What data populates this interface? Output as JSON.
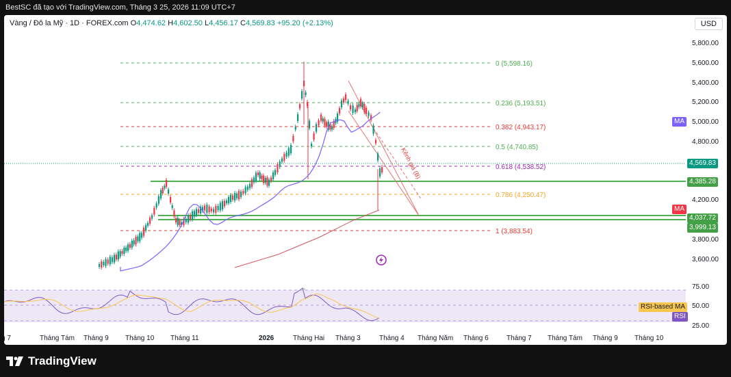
{
  "header": {
    "text": "BestSC đã tạo với TradingView.com, Tháng 3 25, 2026 11:09 UTC+7"
  },
  "legend": {
    "symbol": "Vàng / Đô la Mỹ · 1D · FOREX.com",
    "open_label": "O",
    "open": "4,474.62",
    "high_label": "H",
    "high": "4,602.50",
    "low_label": "L",
    "low": "4,456.17",
    "close_label": "C",
    "close": "4,569.83",
    "change": "+95.20 (+2.13%)"
  },
  "currency": "USD",
  "price_axis": [
    "5,800.00",
    "5,600.00",
    "5,400.00",
    "5,200.00",
    "5,000.00",
    "4,800.00",
    "4,200.00",
    "3,800.00",
    "3,600.00"
  ],
  "rsi_axis": [
    "75.00",
    "50.00",
    "25.00"
  ],
  "price_tags": {
    "last": "4,569.83",
    "level1": "4,385.28",
    "level2": "4,037.72",
    "level3": "3,999.13",
    "ma1": "MA",
    "ma2": "MA",
    "rsi_ma": "RSI-based MA",
    "rsi": "RSI"
  },
  "fib_labels": [
    {
      "text": "0 (5,598.16)",
      "color": "#4caf50"
    },
    {
      "text": "0.236 (5,193.51)",
      "color": "#4caf50"
    },
    {
      "text": "0.382 (4,943.17)",
      "color": "#e53935"
    },
    {
      "text": "0.5 (4,740.85)",
      "color": "#4caf50"
    },
    {
      "text": "0.618 (4,538.52)",
      "color": "#9c27b0"
    },
    {
      "text": "0.786 (4,250.47)",
      "color": "#f5a623"
    },
    {
      "text": "1 (3,883.54)",
      "color": "#e53935"
    }
  ],
  "channel_label": "Kênh giá (B)",
  "time_axis": [
    "g 7",
    "Tháng Tám",
    "Tháng 9",
    "Tháng 10",
    "Tháng 11",
    "2026",
    "Tháng Hai",
    "Tháng 3",
    "Tháng 4",
    "Tháng Năm",
    "Tháng 6",
    "Tháng 7",
    "Tháng Tám",
    "Tháng 9",
    "Tháng 10"
  ],
  "footer": {
    "brand": "TradingView"
  },
  "colors": {
    "up": "#089981",
    "down": "#f23645",
    "ma": "#7b61ff",
    "rsi_bg": "#ede7f6",
    "level": "#4caf50"
  }
}
